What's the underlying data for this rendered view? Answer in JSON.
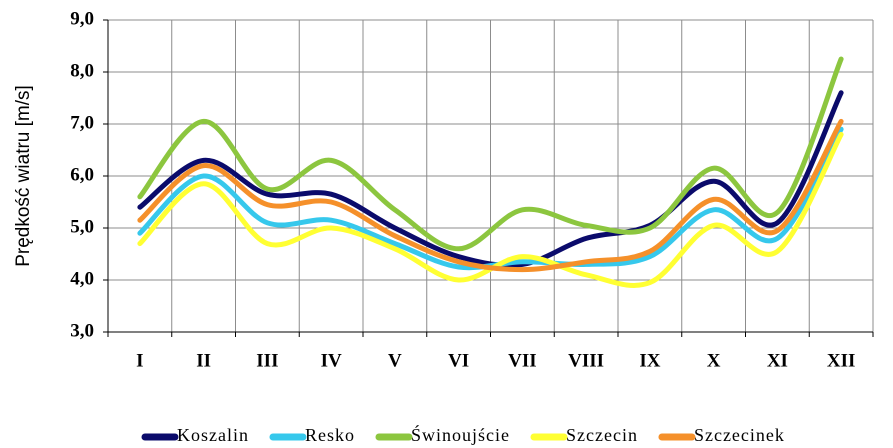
{
  "chart_data": {
    "type": "line",
    "y_label": "Prędkość wiatru [m/s]",
    "categories": [
      "I",
      "II",
      "III",
      "IV",
      "V",
      "VI",
      "VII",
      "VIII",
      "IX",
      "X",
      "XI",
      "XII"
    ],
    "ylim": [
      3,
      9
    ],
    "yticks": [
      {
        "value": 3,
        "label": "3,0"
      },
      {
        "value": 4,
        "label": "4,0"
      },
      {
        "value": 5,
        "label": "5,0"
      },
      {
        "value": 6,
        "label": "6,0"
      },
      {
        "value": 7,
        "label": "7,0"
      },
      {
        "value": 8,
        "label": "8,0"
      },
      {
        "value": 9,
        "label": "9,0"
      }
    ],
    "grid": true,
    "legend": "bottom",
    "series": [
      {
        "name": "Koszalin",
        "color": "#0b0b6b",
        "values": [
          5.4,
          6.3,
          5.65,
          5.65,
          5.0,
          4.45,
          4.3,
          4.8,
          5.05,
          5.9,
          5.1,
          7.6
        ]
      },
      {
        "name": "Resko",
        "color": "#36c8ec",
        "values": [
          4.9,
          6.0,
          5.1,
          5.15,
          4.7,
          4.25,
          4.35,
          4.3,
          4.45,
          5.35,
          4.8,
          6.9
        ]
      },
      {
        "name": "Świnoujście",
        "color": "#8cc63f",
        "values": [
          5.6,
          7.05,
          5.75,
          6.3,
          5.35,
          4.6,
          5.35,
          5.05,
          5.0,
          6.15,
          5.3,
          8.25
        ]
      },
      {
        "name": "Szczecin",
        "color": "#ffff33",
        "values": [
          4.7,
          5.85,
          4.7,
          5.0,
          4.6,
          4.0,
          4.45,
          4.1,
          3.95,
          5.05,
          4.55,
          6.8
        ]
      },
      {
        "name": "Szczecinek",
        "color": "#f5902a",
        "values": [
          5.15,
          6.2,
          5.45,
          5.5,
          4.85,
          4.35,
          4.2,
          4.35,
          4.55,
          5.55,
          4.95,
          7.05
        ]
      }
    ]
  }
}
